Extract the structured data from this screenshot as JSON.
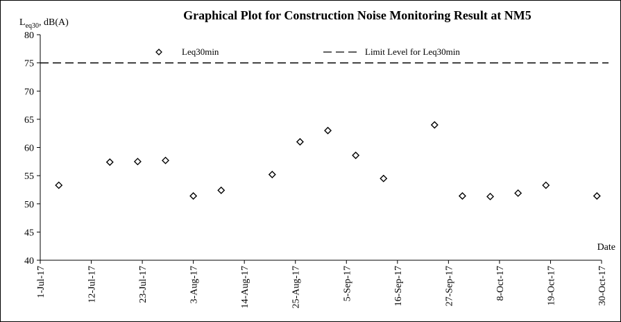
{
  "chart_data": {
    "type": "scatter",
    "title": "Graphical Plot for Construction Noise Monitoring Result at NM5",
    "ylabel_main": "L",
    "ylabel_sub": "eq30",
    "ylabel_rest": ", dB(A)",
    "xlabel": "Date",
    "ylim": [
      40,
      80
    ],
    "yticks": [
      40,
      45,
      50,
      55,
      60,
      65,
      70,
      75,
      80
    ],
    "xlim": [
      "2017-07-01",
      "2017-10-30"
    ],
    "xticks": [
      {
        "date": "2017-07-01",
        "label": "1-Jul-17"
      },
      {
        "date": "2017-07-12",
        "label": "12-Jul-17"
      },
      {
        "date": "2017-07-23",
        "label": "23-Jul-17"
      },
      {
        "date": "2017-08-03",
        "label": "3-Aug-17"
      },
      {
        "date": "2017-08-14",
        "label": "14-Aug-17"
      },
      {
        "date": "2017-08-25",
        "label": "25-Aug-17"
      },
      {
        "date": "2017-09-05",
        "label": "5-Sep-17"
      },
      {
        "date": "2017-09-16",
        "label": "16-Sep-17"
      },
      {
        "date": "2017-09-27",
        "label": "27-Sep-17"
      },
      {
        "date": "2017-10-08",
        "label": "8-Oct-17"
      },
      {
        "date": "2017-10-19",
        "label": "19-Oct-17"
      },
      {
        "date": "2017-10-30",
        "label": "30-Oct-17"
      }
    ],
    "series": [
      {
        "name": "Leq30min",
        "marker": "diamond",
        "points": [
          {
            "x": "2017-07-05",
            "y": 53.3
          },
          {
            "x": "2017-07-16",
            "y": 57.4
          },
          {
            "x": "2017-07-22",
            "y": 57.5
          },
          {
            "x": "2017-07-28",
            "y": 57.7
          },
          {
            "x": "2017-08-03",
            "y": 51.4
          },
          {
            "x": "2017-08-09",
            "y": 52.4
          },
          {
            "x": "2017-08-20",
            "y": 55.2
          },
          {
            "x": "2017-08-26",
            "y": 61.0
          },
          {
            "x": "2017-09-01",
            "y": 63.0
          },
          {
            "x": "2017-09-07",
            "y": 58.6
          },
          {
            "x": "2017-09-13",
            "y": 54.5
          },
          {
            "x": "2017-09-24",
            "y": 64.0
          },
          {
            "x": "2017-09-30",
            "y": 51.4
          },
          {
            "x": "2017-10-06",
            "y": 51.3
          },
          {
            "x": "2017-10-12",
            "y": 51.9
          },
          {
            "x": "2017-10-18",
            "y": 53.3
          },
          {
            "x": "2017-10-29",
            "y": 51.4
          }
        ]
      }
    ],
    "reference_lines": [
      {
        "name": "Limit Level for Leq30min",
        "y": 75,
        "style": "dashed"
      }
    ],
    "legend": {
      "placement": "top-center"
    },
    "grid": false
  }
}
